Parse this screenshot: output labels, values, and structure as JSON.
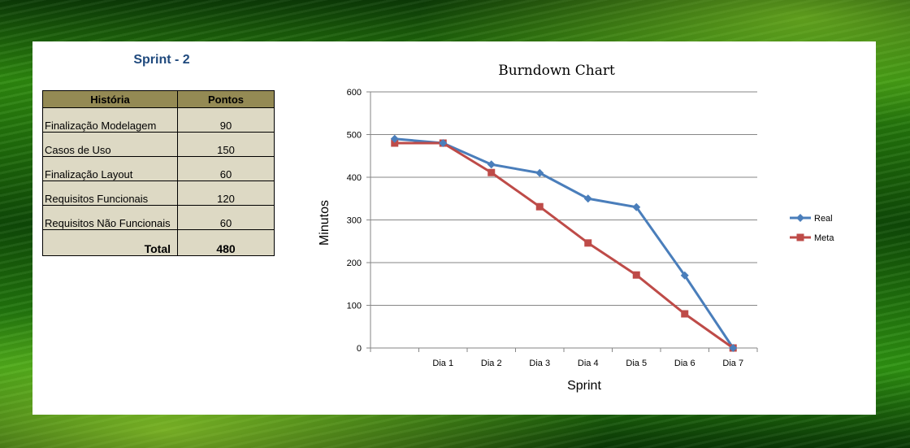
{
  "sprint_title": "Sprint - 2",
  "table": {
    "headers": [
      "História",
      "Pontos"
    ],
    "rows": [
      {
        "historia": "Finalização Modelagem",
        "pontos": "90"
      },
      {
        "historia": "Casos de Uso",
        "pontos": "150"
      },
      {
        "historia": "Finalização Layout",
        "pontos": "60"
      },
      {
        "historia": "Requisitos Funcionais",
        "pontos": "120"
      },
      {
        "historia": "Requisitos Não Funcionais",
        "pontos": "60"
      }
    ],
    "total_label": "Total",
    "total_value": "480"
  },
  "chart_data": {
    "type": "line",
    "title": "Burndown Chart",
    "xlabel": "Sprint",
    "ylabel": "Minutos",
    "categories": [
      "",
      "Dia 1",
      "Dia 2",
      "Dia 3",
      "Dia 4",
      "Dia 5",
      "Dia 6",
      "Dia 7"
    ],
    "ylim": [
      0,
      600
    ],
    "yticks": [
      0,
      100,
      200,
      300,
      400,
      500,
      600
    ],
    "grid": true,
    "legend_position": "right",
    "series": [
      {
        "name": "Real",
        "color": "#4a7ebb",
        "marker": "diamond",
        "values": [
          490,
          480,
          430,
          410,
          350,
          330,
          170,
          0
        ]
      },
      {
        "name": "Meta",
        "color": "#be4b48",
        "marker": "square",
        "values": [
          480,
          480,
          411,
          331,
          246,
          171,
          80,
          0
        ]
      }
    ]
  }
}
